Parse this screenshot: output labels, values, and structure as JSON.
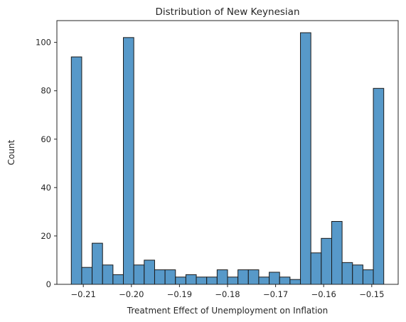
{
  "chart_data": {
    "type": "bar",
    "subtype": "histogram",
    "title": "Distribution of New Keynesian",
    "xlabel": "Treatment Effect of Unemployment on Inflation",
    "ylabel": "Count",
    "bar_color": "#5799c9",
    "edge_color": "#1a1a1a",
    "xlim": [
      -0.2155,
      -0.1445
    ],
    "ylim": [
      0,
      109
    ],
    "bin_start": -0.2125,
    "bin_end": -0.1475,
    "x_ticks": [
      {
        "value": -0.21,
        "label": "−0.21"
      },
      {
        "value": -0.2,
        "label": "−0.20"
      },
      {
        "value": -0.19,
        "label": "−0.19"
      },
      {
        "value": -0.18,
        "label": "−0.18"
      },
      {
        "value": -0.17,
        "label": "−0.17"
      },
      {
        "value": -0.16,
        "label": "−0.16"
      },
      {
        "value": -0.15,
        "label": "−0.15"
      }
    ],
    "y_ticks": [
      {
        "value": 0,
        "label": "0"
      },
      {
        "value": 20,
        "label": "20"
      },
      {
        "value": 40,
        "label": "40"
      },
      {
        "value": 60,
        "label": "60"
      },
      {
        "value": 80,
        "label": "80"
      },
      {
        "value": 100,
        "label": "100"
      }
    ],
    "values": [
      94,
      7,
      17,
      8,
      4,
      102,
      8,
      10,
      6,
      6,
      3,
      4,
      3,
      3,
      6,
      3,
      6,
      6,
      3,
      5,
      3,
      2,
      104,
      13,
      19,
      26,
      9,
      8,
      6,
      81
    ],
    "grid": false,
    "legend": "none"
  }
}
